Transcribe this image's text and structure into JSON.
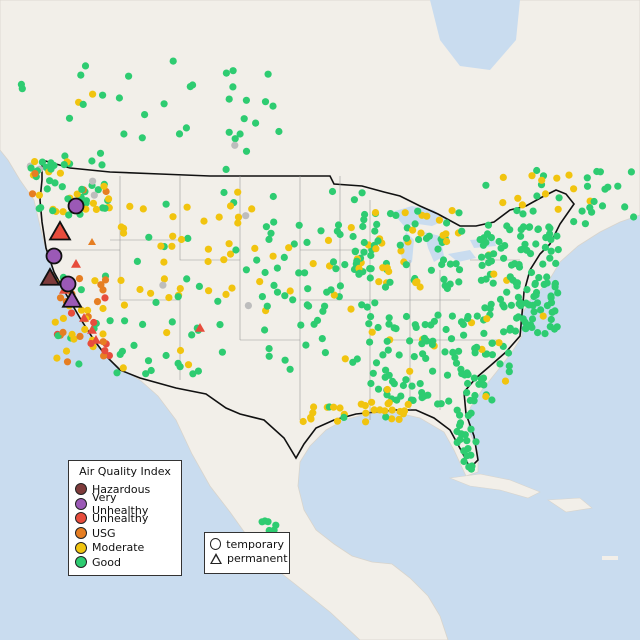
{
  "legend": {
    "title": "Air Quality Index",
    "categories": [
      {
        "label": "Hazardous",
        "color": "#7e3b3b"
      },
      {
        "label": "Very Unhealthy",
        "color": "#9b59b6"
      },
      {
        "label": "Unhealthy",
        "color": "#e74c3c"
      },
      {
        "label": "USG",
        "color": "#e67e22"
      },
      {
        "label": "Moderate",
        "color": "#f1c40f"
      },
      {
        "label": "Good",
        "color": "#2ecc71"
      }
    ]
  },
  "monitor_types": {
    "temporary_label": "temporary",
    "permanent_label": "permanent"
  },
  "colors": {
    "ocean": "#c9dcef",
    "land": "#f2efe9",
    "nodata": "#bdbdbd"
  }
}
